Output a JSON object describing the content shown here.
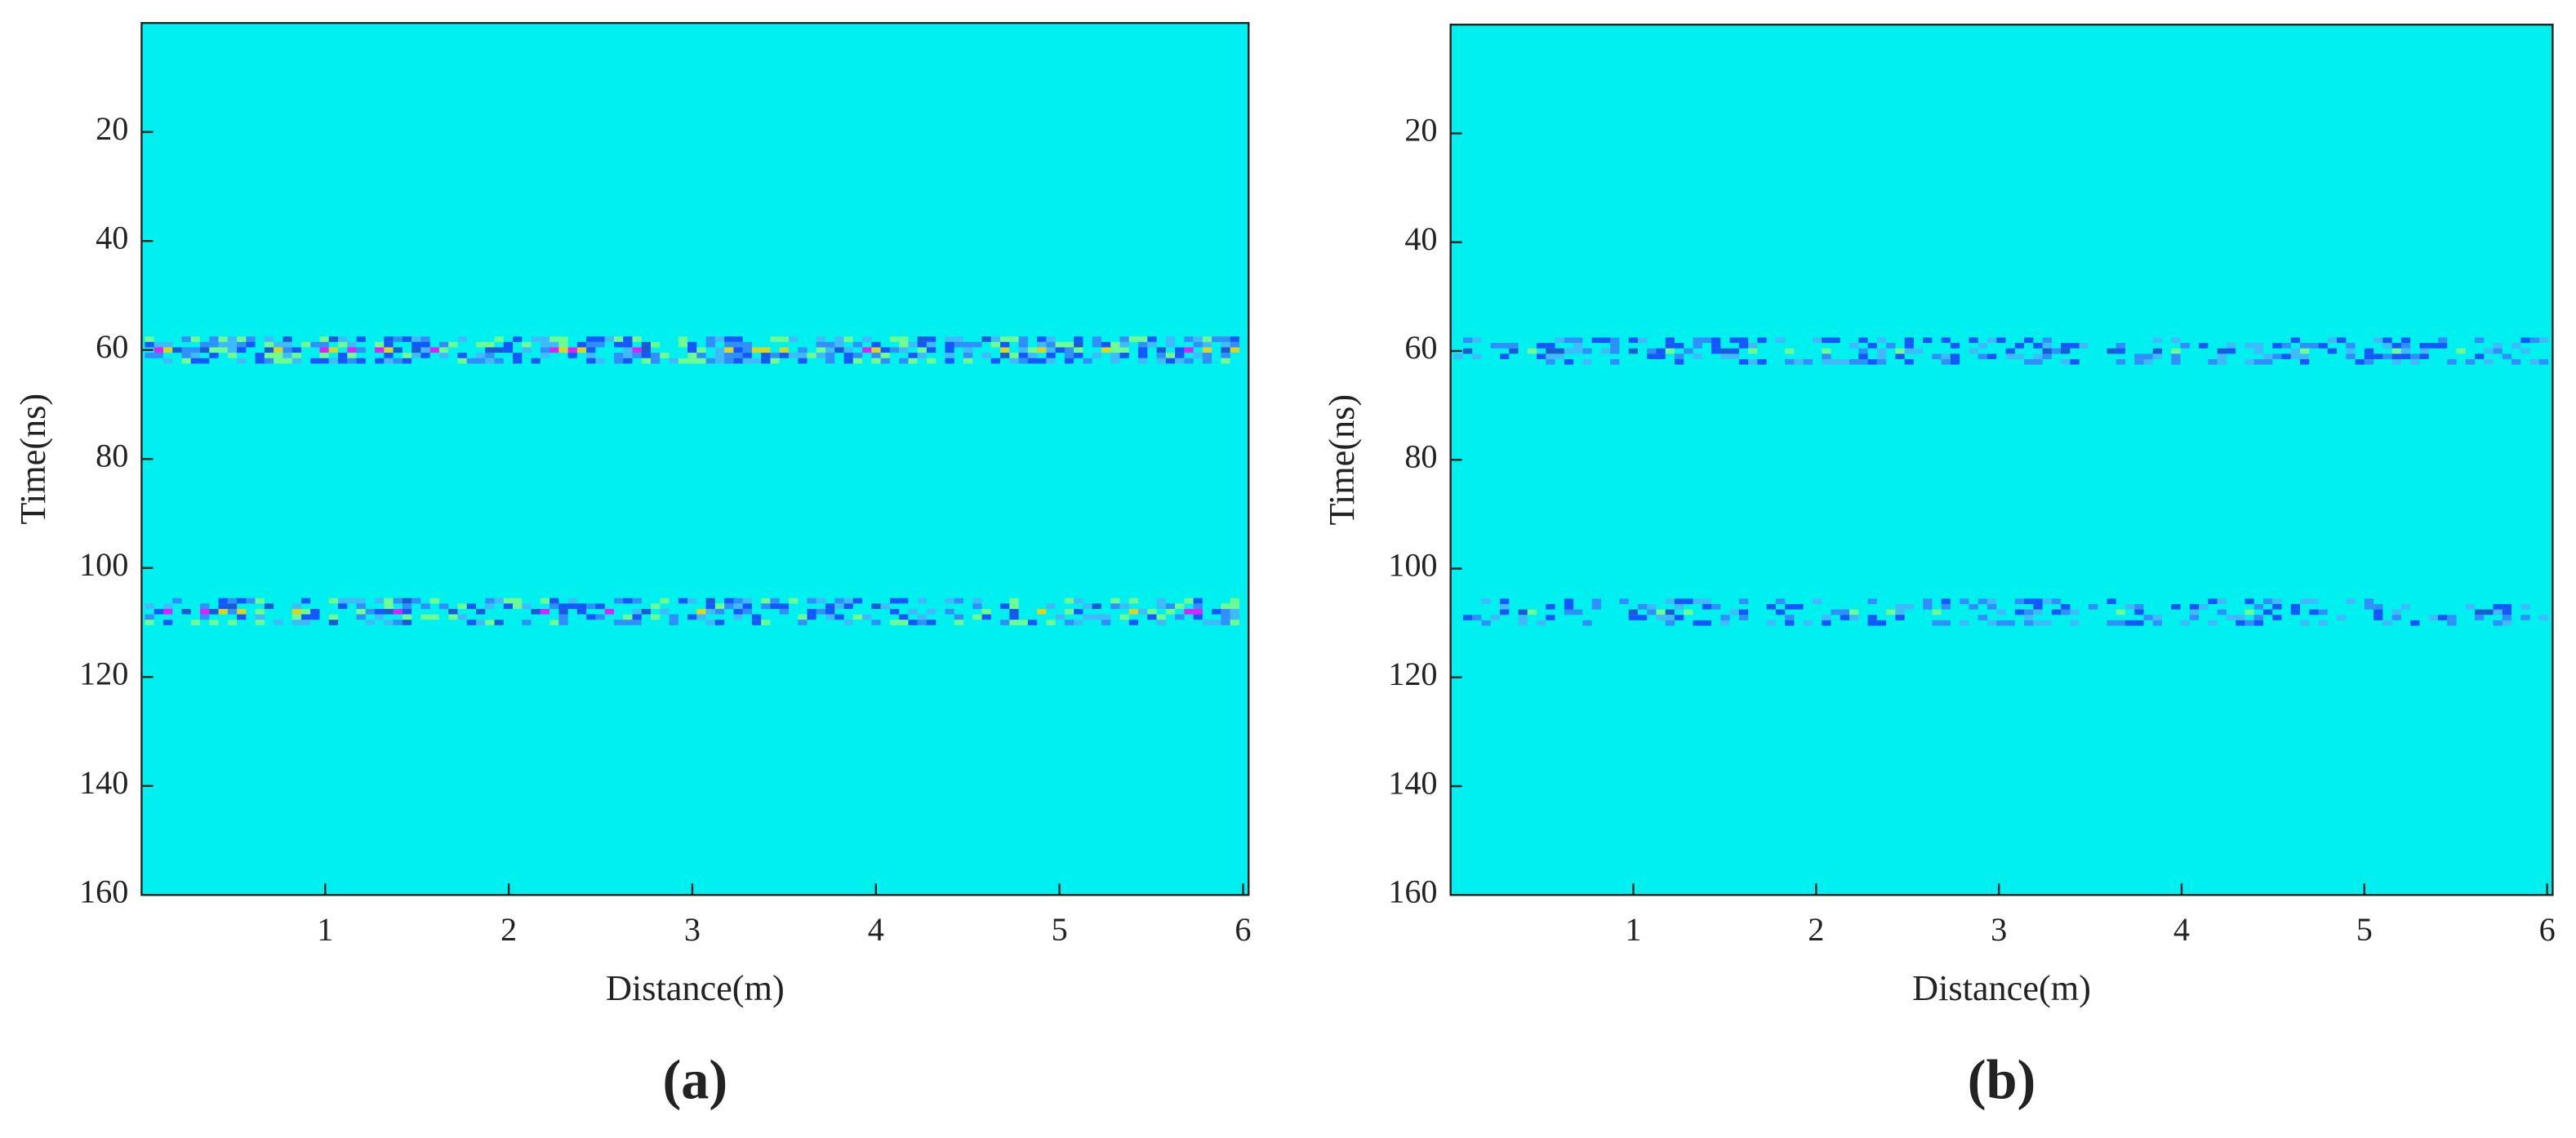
{
  "chart_data": [
    {
      "type": "image",
      "caption": "(a)",
      "xlabel": "Distance(m)",
      "ylabel": "Time(ns)",
      "xlim": [
        0,
        6.03
      ],
      "ylim": [
        0,
        160
      ],
      "xticks": [
        1,
        2,
        3,
        4,
        5,
        6
      ],
      "yticks": [
        20,
        40,
        60,
        80,
        100,
        120,
        140,
        160
      ],
      "yreverse": true,
      "color": "#00f0f0"
    },
    {
      "type": "image",
      "caption": "(b)",
      "xlabel": "Distance(m)",
      "ylabel": "Time(ns)",
      "xlim": [
        0,
        6.03
      ],
      "ylim": [
        0,
        160
      ],
      "xticks": [
        1,
        2,
        3,
        4,
        5,
        6
      ],
      "yticks": [
        20,
        40,
        60,
        80,
        100,
        120,
        140,
        160
      ],
      "yreverse": true,
      "color": "#00f0f0"
    }
  ]
}
